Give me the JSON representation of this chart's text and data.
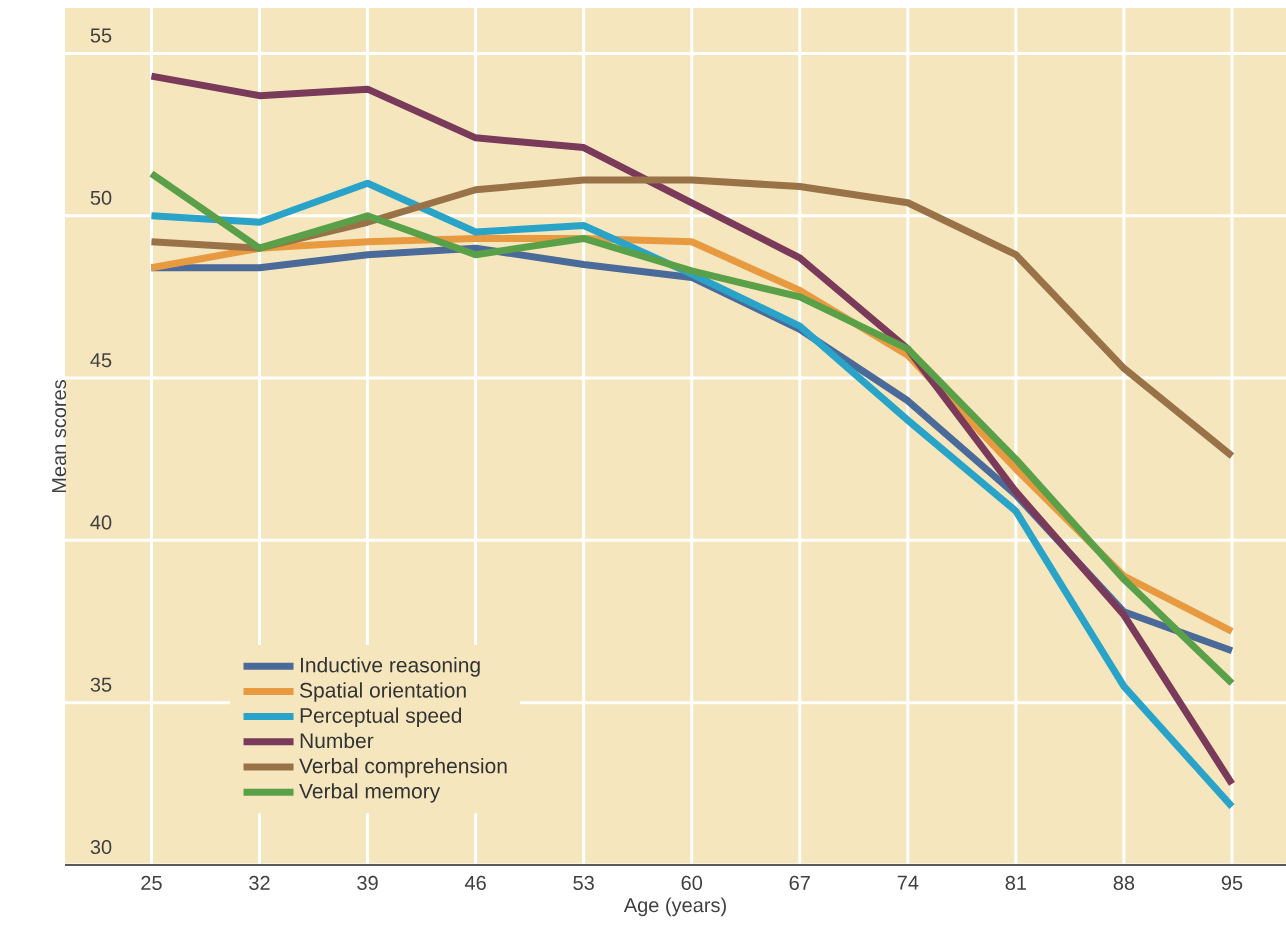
{
  "chart_data": {
    "type": "line",
    "xlabel": "Age (years)",
    "ylabel": "Mean scores",
    "categories": [
      "25",
      "32",
      "39",
      "46",
      "53",
      "60",
      "67",
      "74",
      "81",
      "88",
      "95"
    ],
    "ylim": [
      30,
      56.4
    ],
    "yticks": [
      30,
      35,
      40,
      45,
      50,
      55
    ],
    "grid": true,
    "legend": "bottom left",
    "marker": "none",
    "line_style": "solid",
    "series": [
      {
        "name": "Inductive reasoning",
        "color": "#4a6a9a",
        "values": [
          48.4,
          48.4,
          48.8,
          49.0,
          48.5,
          48.1,
          46.5,
          44.3,
          41.4,
          37.8,
          36.6
        ]
      },
      {
        "name": "Spatial orientation",
        "color": "#e89a40",
        "values": [
          48.4,
          49.0,
          49.2,
          49.3,
          49.3,
          49.2,
          47.7,
          45.7,
          42.2,
          38.9,
          37.2
        ]
      },
      {
        "name": "Perceptual speed",
        "color": "#2aa3c8",
        "values": [
          50.0,
          49.8,
          51.0,
          49.5,
          49.7,
          48.2,
          46.6,
          43.7,
          40.9,
          35.5,
          31.8
        ]
      },
      {
        "name": "Number",
        "color": "#7a3a5a",
        "values": [
          54.3,
          53.7,
          53.9,
          52.4,
          52.1,
          50.4,
          48.7,
          45.9,
          41.5,
          37.7,
          32.5
        ]
      },
      {
        "name": "Verbal comprehension",
        "color": "#9a7248",
        "values": [
          49.2,
          49.0,
          49.8,
          50.8,
          51.1,
          51.1,
          50.9,
          50.4,
          48.8,
          45.3,
          42.6
        ]
      },
      {
        "name": "Verbal memory",
        "color": "#5aa048",
        "values": [
          51.3,
          49.0,
          50.0,
          48.8,
          49.3,
          48.3,
          47.5,
          45.9,
          42.5,
          38.8,
          35.6
        ]
      }
    ]
  }
}
